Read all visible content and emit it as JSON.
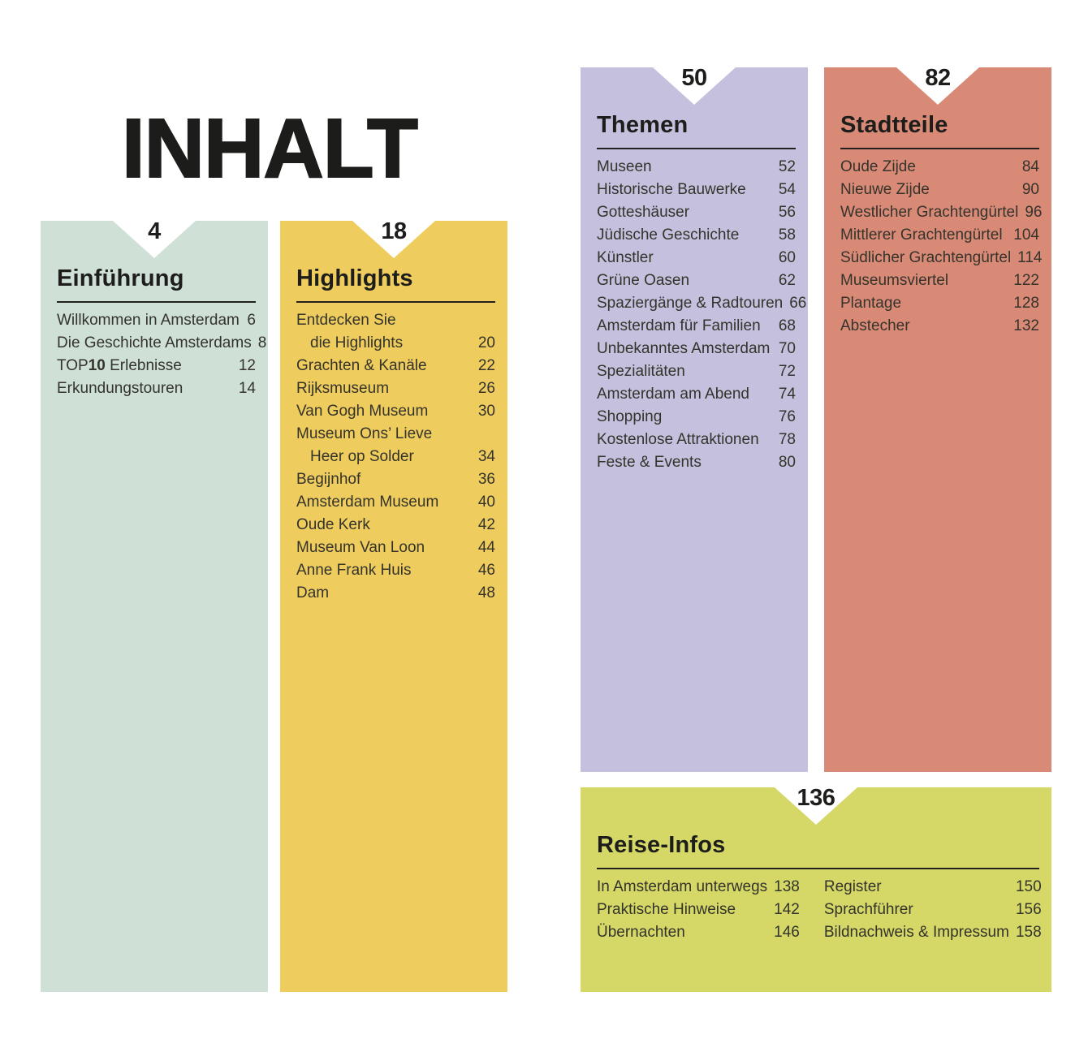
{
  "page_title": "INHALT",
  "colors": {
    "mint": "#cfe0d6",
    "yellow": "#efcc5e",
    "purple": "#c5c0dd",
    "salmon": "#d98a76",
    "lime": "#d5d867",
    "ink": "#1d1d1b",
    "item_text": "#34332c",
    "page_background": "#ffffff"
  },
  "sections": {
    "einfuehrung": {
      "page_number": "4",
      "title": "Einführung",
      "items": [
        {
          "label": "Willkommen in Amsterdam",
          "page": "6"
        },
        {
          "label": "Die Geschichte Amsterdams",
          "page": "8"
        },
        {
          "pre": "TOP",
          "bold": "10",
          "post": " Erlebnisse",
          "page": "12"
        },
        {
          "label": "Erkundungstouren",
          "page": "14"
        }
      ]
    },
    "highlights": {
      "page_number": "18",
      "title": "Highlights",
      "items": [
        {
          "line1": "Entdecken Sie",
          "line2": "die Highlights",
          "page": "20"
        },
        {
          "label": "Grachten & Kanäle",
          "page": "22"
        },
        {
          "label": "Rijksmuseum",
          "page": "26"
        },
        {
          "label": "Van Gogh Museum",
          "page": "30"
        },
        {
          "line1": "Museum Ons’ Lieve",
          "line2": "Heer op Solder",
          "page": "34"
        },
        {
          "label": "Begijnhof",
          "page": "36"
        },
        {
          "label": "Amsterdam Museum",
          "page": "40"
        },
        {
          "label": "Oude Kerk",
          "page": "42"
        },
        {
          "label": "Museum Van Loon",
          "page": "44"
        },
        {
          "label": "Anne Frank Huis",
          "page": "46"
        },
        {
          "label": "Dam",
          "page": "48"
        }
      ]
    },
    "themen": {
      "page_number": "50",
      "title": "Themen",
      "items": [
        {
          "label": "Museen",
          "page": "52"
        },
        {
          "label": "Historische Bauwerke",
          "page": "54"
        },
        {
          "label": "Gotteshäuser",
          "page": "56"
        },
        {
          "label": "Jüdische Geschichte",
          "page": "58"
        },
        {
          "label": "Künstler",
          "page": "60"
        },
        {
          "label": "Grüne Oasen",
          "page": "62"
        },
        {
          "label": "Spaziergänge & Radtouren",
          "page": "66"
        },
        {
          "label": "Amsterdam für Familien",
          "page": "68"
        },
        {
          "label": "Unbekanntes Amsterdam",
          "page": "70"
        },
        {
          "label": "Spezialitäten",
          "page": "72"
        },
        {
          "label": "Amsterdam am Abend",
          "page": "74"
        },
        {
          "label": "Shopping",
          "page": "76"
        },
        {
          "label": "Kostenlose Attraktionen",
          "page": "78"
        },
        {
          "label": "Feste & Events",
          "page": "80"
        }
      ]
    },
    "stadtteile": {
      "page_number": "82",
      "title": "Stadtteile",
      "items": [
        {
          "label": "Oude Zijde",
          "page": "84"
        },
        {
          "label": "Nieuwe Zijde",
          "page": "90"
        },
        {
          "label": "Westlicher Grachtengürtel",
          "page": "96"
        },
        {
          "label": "Mittlerer Grachtengürtel",
          "page": "104"
        },
        {
          "label": "Südlicher Grachtengürtel",
          "page": "114"
        },
        {
          "label": "Museumsviertel",
          "page": "122"
        },
        {
          "label": "Plantage",
          "page": "128"
        },
        {
          "label": "Abstecher",
          "page": "132"
        }
      ]
    },
    "reiseinfos": {
      "page_number": "136",
      "title": "Reise-Infos",
      "col1": [
        {
          "label": "In Amsterdam unterwegs",
          "page": "138"
        },
        {
          "label": "Praktische Hinweise",
          "page": "142"
        },
        {
          "label": "Übernachten",
          "page": "146"
        }
      ],
      "col2": [
        {
          "label": "Register",
          "page": "150"
        },
        {
          "label": "Sprachführer",
          "page": "156"
        },
        {
          "label": "Bildnachweis & Impressum",
          "page": "158"
        }
      ]
    }
  }
}
